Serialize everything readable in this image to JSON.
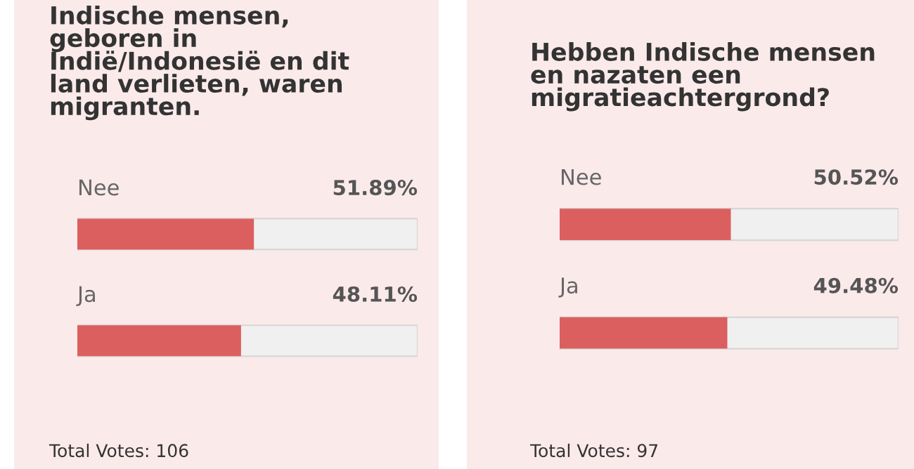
{
  "chart_data": [
    {
      "type": "bar",
      "orientation": "horizontal",
      "title": "Indische mensen,\ngeboren in\nIndië/Indonesië en dit\nland verlieten, waren\nmigranten.",
      "categories": [
        "Nee",
        "Ja"
      ],
      "values": [
        51.89,
        48.11
      ],
      "value_labels": [
        "51.89%",
        "48.11%"
      ],
      "color": "#dc5f5f",
      "xlim": [
        0,
        100
      ],
      "tick_labels": false,
      "grid": false,
      "legend": false,
      "annotations": [
        "Total Votes: 106"
      ]
    },
    {
      "type": "bar",
      "orientation": "horizontal",
      "title": "Hebben Indische mensen\nen nazaten een\nmigratieachtergrond?",
      "categories": [
        "Nee",
        "Ja"
      ],
      "values": [
        50.52,
        49.48
      ],
      "value_labels": [
        "50.52%",
        "49.48%"
      ],
      "color": "#dc5f5f",
      "xlim": [
        0,
        100
      ],
      "tick_labels": false,
      "grid": false,
      "legend": false,
      "annotations": [
        "Total Votes: 97"
      ]
    }
  ]
}
